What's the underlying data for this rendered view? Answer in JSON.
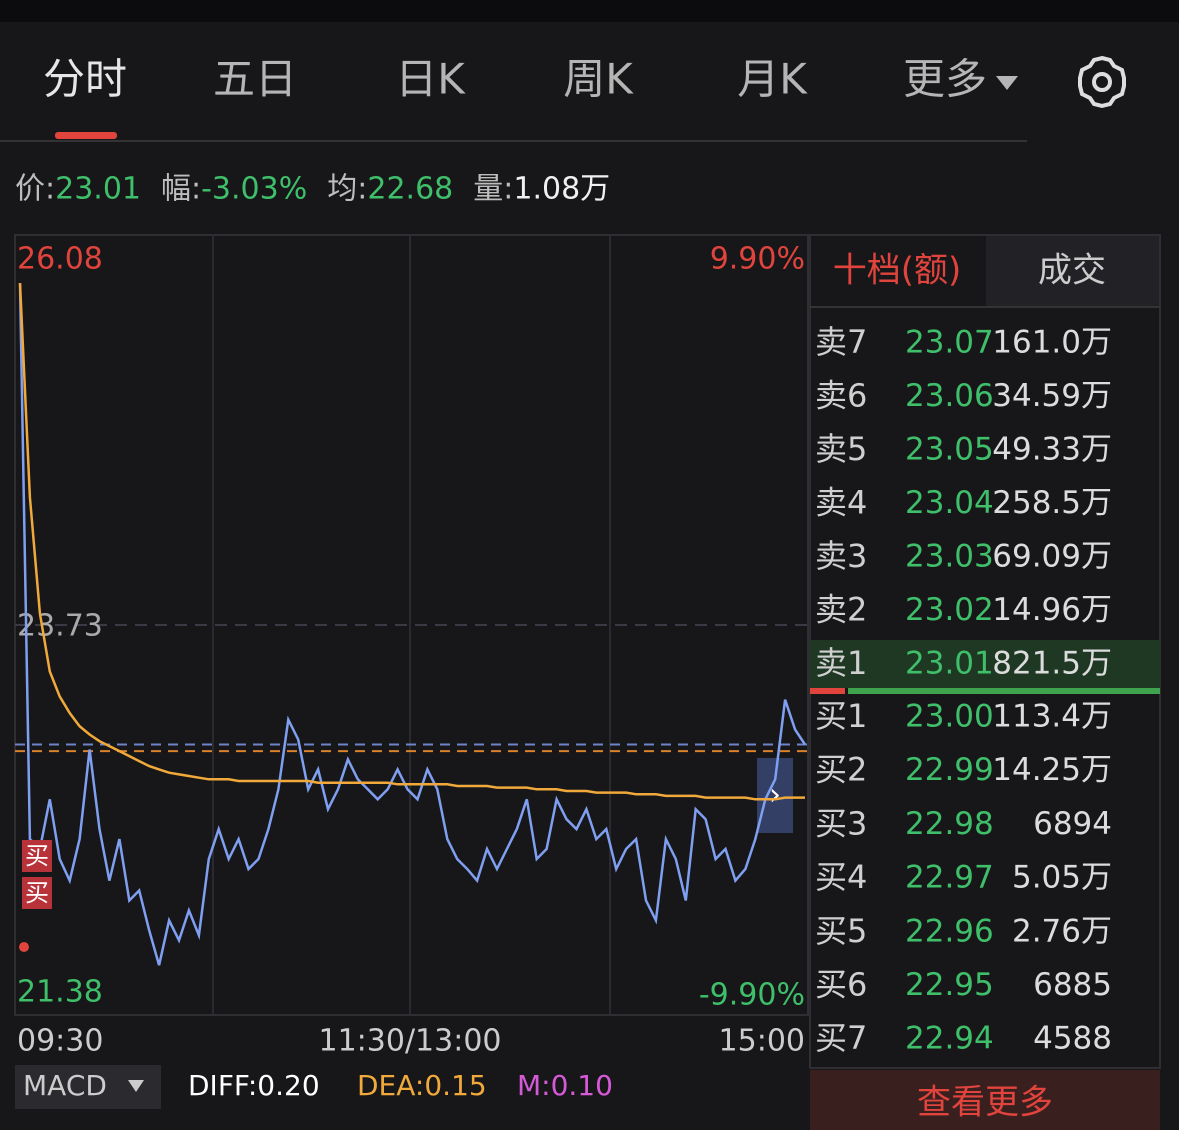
{
  "tabs": [
    "分时",
    "五日",
    "日K",
    "周K",
    "月K",
    "更多"
  ],
  "stats": [
    {
      "label": "价:",
      "value": "23.01"
    },
    {
      "label": "幅:",
      "value": "-3.03%"
    },
    {
      "label": "均:",
      "value": "22.68"
    },
    {
      "label": "量:",
      "value": "1.08万"
    }
  ],
  "chart_data": {
    "type": "line",
    "ylim": [
      21.38,
      26.08
    ],
    "yticks": [
      21.38,
      23.73,
      26.08
    ],
    "right_labels": [
      "9.90%",
      "-9.90%"
    ],
    "x_labels": [
      "09:30",
      "11:30/13:00",
      "15:00"
    ],
    "markers": [
      "买",
      "买"
    ],
    "ref_lines": [
      {
        "value": 23.01,
        "color": "#6f83c9"
      },
      {
        "value": 22.97,
        "color": "#d9822b"
      }
    ],
    "series": [
      {
        "color": "#7f9ff0",
        "values": [
          25.79,
          22.44,
          22.38,
          22.68,
          22.32,
          22.19,
          22.44,
          22.98,
          22.5,
          22.19,
          22.44,
          22.07,
          22.13,
          21.89,
          21.68,
          21.95,
          21.83,
          22.01,
          21.86,
          22.32,
          22.5,
          22.32,
          22.44,
          22.26,
          22.32,
          22.5,
          22.74,
          23.16,
          23.04,
          22.74,
          22.86,
          22.62,
          22.74,
          22.92,
          22.8,
          22.74,
          22.68,
          22.74,
          22.86,
          22.74,
          22.68,
          22.86,
          22.74,
          22.44,
          22.32,
          22.26,
          22.19,
          22.38,
          22.26,
          22.38,
          22.5,
          22.68,
          22.32,
          22.38,
          22.68,
          22.56,
          22.5,
          22.62,
          22.44,
          22.5,
          22.26,
          22.38,
          22.44,
          22.07,
          21.95,
          22.44,
          22.32,
          22.07,
          22.62,
          22.56,
          22.32,
          22.38,
          22.19,
          22.26,
          22.44,
          22.68,
          22.8,
          23.28,
          23.1,
          23.01
        ]
      },
      {
        "color": "#f0a93a",
        "values": [
          25.79,
          24.5,
          23.8,
          23.45,
          23.3,
          23.2,
          23.12,
          23.07,
          23.03,
          23.0,
          22.97,
          22.94,
          22.91,
          22.88,
          22.86,
          22.84,
          22.83,
          22.82,
          22.81,
          22.8,
          22.8,
          22.8,
          22.79,
          22.79,
          22.79,
          22.79,
          22.79,
          22.79,
          22.79,
          22.79,
          22.78,
          22.78,
          22.78,
          22.78,
          22.78,
          22.78,
          22.78,
          22.78,
          22.77,
          22.77,
          22.77,
          22.77,
          22.77,
          22.77,
          22.76,
          22.76,
          22.76,
          22.76,
          22.75,
          22.75,
          22.75,
          22.75,
          22.74,
          22.74,
          22.74,
          22.73,
          22.73,
          22.73,
          22.72,
          22.72,
          22.72,
          22.72,
          22.71,
          22.71,
          22.71,
          22.7,
          22.7,
          22.7,
          22.7,
          22.69,
          22.69,
          22.69,
          22.69,
          22.69,
          22.68,
          22.68,
          22.68,
          22.69,
          22.69,
          22.69
        ]
      }
    ]
  },
  "order_book": {
    "tabs": [
      "十档(额)",
      "成交"
    ],
    "rows": [
      [
        "卖7",
        "23.07",
        "161.0万"
      ],
      [
        "卖6",
        "23.06",
        "34.59万"
      ],
      [
        "卖5",
        "23.05",
        "49.33万"
      ],
      [
        "卖4",
        "23.04",
        "258.5万"
      ],
      [
        "卖3",
        "23.03",
        "69.09万"
      ],
      [
        "卖2",
        "23.02",
        "14.96万"
      ],
      [
        "卖1",
        "23.01",
        "821.5万"
      ],
      [
        "买1",
        "23.00",
        "113.4万"
      ],
      [
        "买2",
        "22.99",
        "14.25万"
      ],
      [
        "买3",
        "22.98",
        "6894"
      ],
      [
        "买4",
        "22.97",
        "5.05万"
      ],
      [
        "买5",
        "22.96",
        "2.76万"
      ],
      [
        "买6",
        "22.95",
        "6885"
      ],
      [
        "买7",
        "22.94",
        "4588"
      ]
    ],
    "more": "查看更多"
  },
  "indicator": {
    "name": "MACD",
    "values": [
      "DIFF:0.20",
      "DEA:0.15",
      "M:0.10"
    ]
  }
}
